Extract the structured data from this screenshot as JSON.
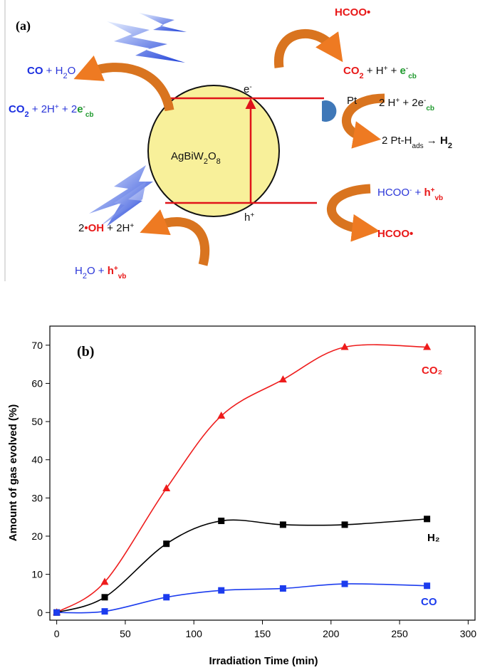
{
  "diagram": {
    "panel_label": "(a)",
    "labels": [
      [
        "CO",
        " + H",
        "2",
        "O"
      ],
      [
        "CO",
        "2",
        " + 2H",
        "+",
        " + 2",
        "e",
        "-",
        "cb"
      ],
      [
        "HCOO•"
      ],
      [
        "CO",
        "2",
        " + H",
        "+",
        " + ",
        "e",
        "-",
        "cb"
      ],
      [
        "Pt"
      ],
      [
        "2 H",
        "+",
        " + 2e",
        "-",
        "cb"
      ],
      [
        "2 Pt-H",
        "ads",
        " → ",
        "H",
        "2"
      ],
      [
        "e",
        "-"
      ],
      [
        "AgBiW",
        "2",
        "O",
        "8"
      ],
      [
        "h",
        "+"
      ],
      [
        "HCOO",
        "-",
        " + ",
        "h",
        "+",
        "vb"
      ],
      [
        "HCOO•"
      ],
      [
        "2",
        "•OH",
        " + 2H",
        "+"
      ],
      [
        "H",
        "2",
        "O + ",
        "h",
        "+",
        "vb"
      ]
    ]
  },
  "chart_data": {
    "type": "line",
    "panel_label": "(b)",
    "x_label": "Irradiation Time (min)",
    "y_label": "Amount of gas evolved (%)",
    "x": [
      0,
      35,
      80,
      120,
      165,
      210,
      270
    ],
    "series": [
      {
        "name": "CO₂",
        "color": "#ee1c1c",
        "marker": "triangle",
        "values": [
          0,
          8,
          32.5,
          51.5,
          61,
          69.5,
          69.5
        ]
      },
      {
        "name": "H₂",
        "color": "#000000",
        "marker": "square",
        "values": [
          0,
          4,
          18,
          24,
          23,
          23,
          24.5
        ]
      },
      {
        "name": "CO",
        "color": "#1c3cee",
        "marker": "square",
        "values": [
          0,
          0.3,
          4,
          5.8,
          6.3,
          7.5,
          7
        ]
      }
    ],
    "xlim": [
      -5,
      305
    ],
    "ylim": [
      -2,
      75
    ],
    "xticks": [
      0,
      50,
      100,
      150,
      200,
      250,
      300
    ],
    "yticks": [
      0,
      10,
      20,
      30,
      40,
      50,
      60,
      70
    ]
  }
}
